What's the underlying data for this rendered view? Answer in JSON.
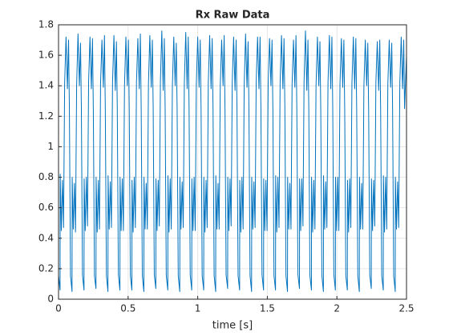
{
  "chart_data": {
    "type": "line",
    "title": "Rx Raw Data",
    "xlabel": "time [s]",
    "color": "#0072bd",
    "grid": true,
    "xlim": [
      0,
      2.5
    ],
    "xticks": [
      0,
      0.5,
      1,
      1.5,
      2,
      2.5
    ],
    "ylim": [
      0,
      1.8
    ],
    "yticks": [
      0,
      0.2,
      0.4,
      0.6,
      0.8,
      1,
      1.2,
      1.4,
      1.6,
      1.8
    ],
    "x": [
      0,
      0.011,
      0.012,
      0.02,
      0.028,
      0.036,
      0.044,
      0.054,
      0.064,
      0.072,
      0.078,
      0.086,
      0.097,
      0.098,
      0.106,
      0.114,
      0.122,
      0.13,
      0.14,
      0.15,
      0.158,
      0.164,
      0.172,
      0.183,
      0.184,
      0.192,
      0.2,
      0.208,
      0.216,
      0.226,
      0.236,
      0.244,
      0.25,
      0.258,
      0.269,
      0.27,
      0.278,
      0.286,
      0.294,
      0.302,
      0.312,
      0.322,
      0.33,
      0.336,
      0.344,
      0.355,
      0.356,
      0.364,
      0.372,
      0.38,
      0.388,
      0.398,
      0.408,
      0.416,
      0.422,
      0.43,
      0.441,
      0.442,
      0.45,
      0.458,
      0.466,
      0.474,
      0.484,
      0.494,
      0.502,
      0.508,
      0.516,
      0.527,
      0.528,
      0.536,
      0.544,
      0.552,
      0.56,
      0.57,
      0.58,
      0.588,
      0.594,
      0.602,
      0.613,
      0.614,
      0.622,
      0.63,
      0.638,
      0.646,
      0.656,
      0.666,
      0.674,
      0.68,
      0.688,
      0.699,
      0.7,
      0.708,
      0.716,
      0.724,
      0.732,
      0.742,
      0.752,
      0.76,
      0.766,
      0.774,
      0.785,
      0.786,
      0.794,
      0.802,
      0.81,
      0.818,
      0.828,
      0.838,
      0.846,
      0.852,
      0.86,
      0.871,
      0.872,
      0.88,
      0.888,
      0.896,
      0.904,
      0.914,
      0.924,
      0.932,
      0.938,
      0.946,
      0.957,
      0.958,
      0.966,
      0.974,
      0.982,
      0.99,
      1,
      1.01,
      1.018,
      1.024,
      1.032,
      1.043,
      1.044,
      1.052,
      1.06,
      1.068,
      1.076,
      1.086,
      1.096,
      1.104,
      1.11,
      1.118,
      1.129,
      1.13,
      1.138,
      1.146,
      1.154,
      1.162,
      1.172,
      1.182,
      1.19,
      1.196,
      1.204,
      1.215,
      1.216,
      1.224,
      1.232,
      1.24,
      1.248,
      1.258,
      1.268,
      1.276,
      1.282,
      1.29,
      1.301,
      1.302,
      1.31,
      1.318,
      1.326,
      1.334,
      1.344,
      1.354,
      1.362,
      1.368,
      1.376,
      1.387,
      1.388,
      1.396,
      1.404,
      1.412,
      1.42,
      1.43,
      1.44,
      1.448,
      1.454,
      1.462,
      1.473,
      1.474,
      1.482,
      1.49,
      1.498,
      1.506,
      1.516,
      1.526,
      1.534,
      1.54,
      1.548,
      1.559,
      1.56,
      1.568,
      1.576,
      1.584,
      1.592,
      1.602,
      1.612,
      1.62,
      1.626,
      1.634,
      1.645,
      1.646,
      1.654,
      1.662,
      1.67,
      1.678,
      1.688,
      1.698,
      1.706,
      1.712,
      1.72,
      1.731,
      1.732,
      1.74,
      1.748,
      1.756,
      1.764,
      1.774,
      1.784,
      1.792,
      1.798,
      1.806,
      1.817,
      1.818,
      1.826,
      1.834,
      1.842,
      1.85,
      1.86,
      1.87,
      1.878,
      1.884,
      1.892,
      1.903,
      1.904,
      1.912,
      1.92,
      1.928,
      1.936,
      1.946,
      1.956,
      1.964,
      1.97,
      1.978,
      1.989,
      1.99,
      1.998,
      2.006,
      2.014,
      2.022,
      2.032,
      2.042,
      2.05,
      2.056,
      2.064,
      2.075,
      2.076,
      2.084,
      2.092,
      2.1,
      2.108,
      2.118,
      2.128,
      2.136,
      2.142,
      2.15,
      2.161,
      2.162,
      2.17,
      2.178,
      2.186,
      2.194,
      2.204,
      2.214,
      2.222,
      2.228,
      2.236,
      2.247,
      2.248,
      2.256,
      2.264,
      2.272,
      2.28,
      2.29,
      2.3,
      2.308,
      2.314,
      2.322,
      2.333,
      2.334,
      2.342,
      2.35,
      2.358,
      2.366,
      2.376,
      2.386,
      2.394,
      2.4,
      2.408,
      2.419,
      2.42,
      2.428,
      2.436,
      2.444,
      2.452,
      2.462,
      2.472,
      2.48,
      2.486,
      2.5
    ],
    "values": [
      0.155,
      0.06,
      0.82,
      0.45,
      0.78,
      0.47,
      1.42,
      1.72,
      1.38,
      1.7,
      1.25,
      0.155,
      0.05,
      0.8,
      0.46,
      0.76,
      0.44,
      1.4,
      1.74,
      1.4,
      1.68,
      1.26,
      0.16,
      0.06,
      0.79,
      0.45,
      0.8,
      0.48,
      1.42,
      1.72,
      1.38,
      1.71,
      1.24,
      0.155,
      0.07,
      0.8,
      0.44,
      0.78,
      0.46,
      1.41,
      1.7,
      1.39,
      1.73,
      1.25,
      0.155,
      0.05,
      0.81,
      0.46,
      0.77,
      0.47,
      1.42,
      1.73,
      1.37,
      1.69,
      1.26,
      0.16,
      0.06,
      0.8,
      0.45,
      0.79,
      0.45,
      1.4,
      1.72,
      1.4,
      1.7,
      1.25,
      0.155,
      0.06,
      0.78,
      0.44,
      0.8,
      0.47,
      1.42,
      1.71,
      1.38,
      1.74,
      1.24,
      0.155,
      0.05,
      0.8,
      0.46,
      0.76,
      0.46,
      1.41,
      1.73,
      1.39,
      1.7,
      1.26,
      0.16,
      0.07,
      0.79,
      0.45,
      0.78,
      0.48,
      1.43,
      1.76,
      1.37,
      1.71,
      1.25,
      0.155,
      0.06,
      0.81,
      0.44,
      0.79,
      0.46,
      1.4,
      1.72,
      1.4,
      1.68,
      1.25,
      0.155,
      0.05,
      0.8,
      0.46,
      0.77,
      0.47,
      1.42,
      1.75,
      1.38,
      1.72,
      1.24,
      0.16,
      0.06,
      0.79,
      0.45,
      0.8,
      0.45,
      1.41,
      1.72,
      1.39,
      1.7,
      1.26,
      0.155,
      0.06,
      0.8,
      0.44,
      0.78,
      0.47,
      1.42,
      1.73,
      1.38,
      1.71,
      1.25,
      0.155,
      0.05,
      0.81,
      0.46,
      0.76,
      0.46,
      1.4,
      1.7,
      1.4,
      1.73,
      1.24,
      0.16,
      0.07,
      0.8,
      0.45,
      0.79,
      0.48,
      1.42,
      1.72,
      1.37,
      1.7,
      1.26,
      0.155,
      0.06,
      0.78,
      0.44,
      0.8,
      0.46,
      1.41,
      1.74,
      1.39,
      1.69,
      1.25,
      0.155,
      0.05,
      0.8,
      0.46,
      0.77,
      0.47,
      1.42,
      1.72,
      1.38,
      1.72,
      1.25,
      0.16,
      0.06,
      0.79,
      0.45,
      0.78,
      0.45,
      1.4,
      1.71,
      1.4,
      1.7,
      1.24,
      0.155,
      0.06,
      0.81,
      0.44,
      0.8,
      0.47,
      1.42,
      1.73,
      1.38,
      1.71,
      1.26,
      0.155,
      0.05,
      0.8,
      0.46,
      0.76,
      0.46,
      1.41,
      1.7,
      1.39,
      1.73,
      1.25,
      0.16,
      0.07,
      0.79,
      0.45,
      0.79,
      0.48,
      1.43,
      1.76,
      1.37,
      1.7,
      1.25,
      0.155,
      0.06,
      0.8,
      0.44,
      0.78,
      0.46,
      1.4,
      1.72,
      1.4,
      1.69,
      1.24,
      0.155,
      0.05,
      0.81,
      0.46,
      0.77,
      0.47,
      1.42,
      1.73,
      1.38,
      1.72,
      1.26,
      0.16,
      0.06,
      0.8,
      0.45,
      0.8,
      0.45,
      1.41,
      1.71,
      1.39,
      1.7,
      1.25,
      0.155,
      0.06,
      0.78,
      0.44,
      0.79,
      0.47,
      1.42,
      1.72,
      1.38,
      1.71,
      1.25,
      0.155,
      0.05,
      0.8,
      0.46,
      0.76,
      0.46,
      1.4,
      1.7,
      1.4,
      1.68,
      1.24,
      0.16,
      0.07,
      0.79,
      0.45,
      0.78,
      0.48,
      1.42,
      1.69,
      1.37,
      1.7,
      1.26,
      0.155,
      0.06,
      0.81,
      0.44,
      0.8,
      0.46,
      1.41,
      1.7,
      1.39,
      1.68,
      1.25,
      0.155,
      0.05,
      0.8,
      0.46,
      0.77,
      0.47,
      1.42,
      1.72,
      1.38,
      1.7,
      1.25,
      1.6
    ]
  }
}
